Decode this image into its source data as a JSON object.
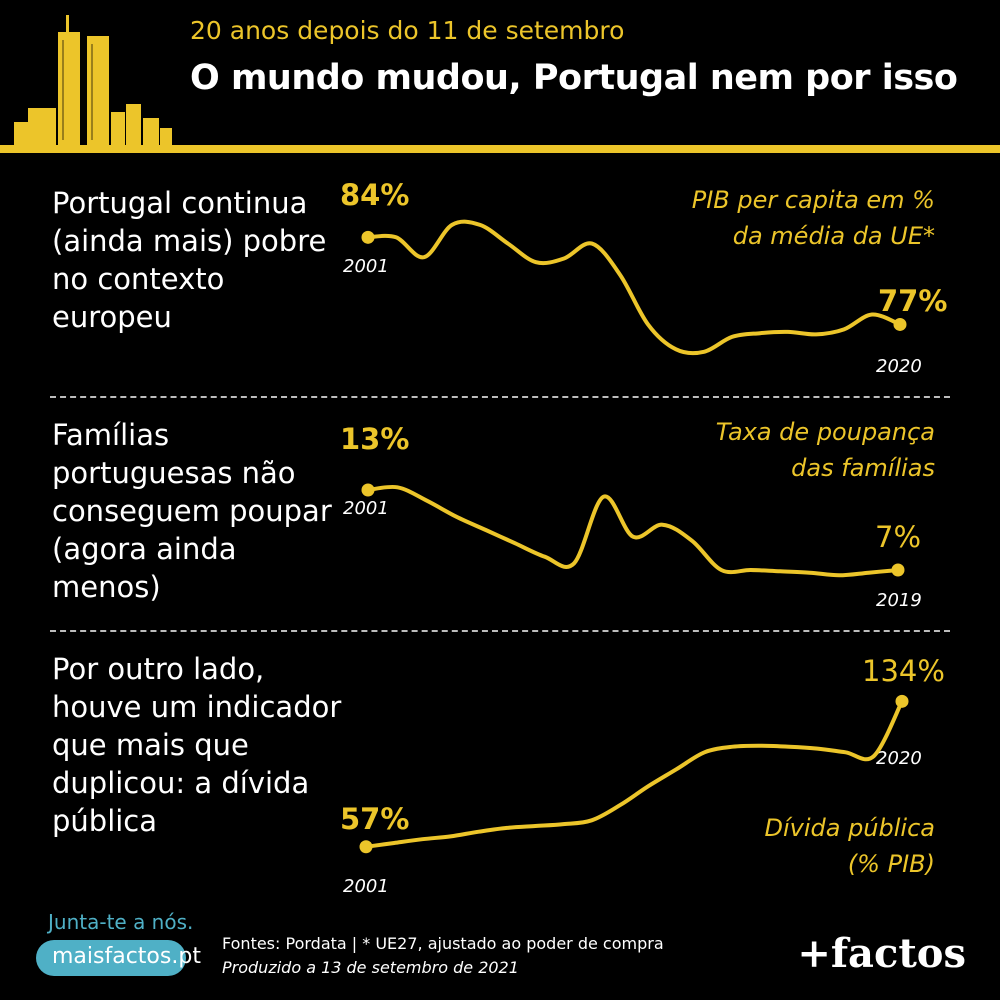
{
  "header": {
    "subtitle": "20 anos depois do 11 de setembro",
    "title": "O mundo mudou, Portugal nem por isso",
    "accent_color": "#ecc52a"
  },
  "panels": [
    {
      "description": "Portugal continua (ainda mais) pobre no contexto europeu"
    },
    {
      "description": "Famílias portuguesas não conseguem poupar (agora ainda menos)"
    },
    {
      "description": "Por outro lado, houve um indicador que mais que duplicou: a dívida pública"
    }
  ],
  "chart_data": [
    {
      "type": "line",
      "title": "PIB per capita em % da média da UE*",
      "title_lines": [
        "PIB per capita em %",
        "da média da UE*"
      ],
      "x": [
        2001,
        2002,
        2003,
        2004,
        2005,
        2006,
        2007,
        2008,
        2009,
        2010,
        2011,
        2012,
        2013,
        2014,
        2015,
        2016,
        2017,
        2018,
        2019,
        2020
      ],
      "series": [
        {
          "values": [
            84,
            84,
            82.4,
            85,
            85,
            83.5,
            82,
            82.3,
            83.5,
            81,
            77,
            75,
            74.8,
            76,
            76.3,
            76.4,
            76.2,
            76.6,
            77.8,
            77
          ]
        }
      ],
      "ylim": [
        73.5,
        87
      ],
      "start_label": "84%",
      "end_label": "77%",
      "start_year": "2001",
      "end_year": "2020",
      "line_color": "#ecc52a"
    },
    {
      "type": "line",
      "title": "Taxa de poupança das famílias",
      "title_lines": [
        "Taxa de poupança",
        "das famílias"
      ],
      "x": [
        2001,
        2002,
        2003,
        2004,
        2005,
        2006,
        2007,
        2008,
        2009,
        2010,
        2011,
        2012,
        2013,
        2014,
        2015,
        2016,
        2017,
        2018,
        2019
      ],
      "series": [
        {
          "values": [
            13,
            13.2,
            12.2,
            11,
            10,
            9,
            8,
            7.5,
            12.5,
            9.5,
            10.4,
            9.2,
            7,
            7,
            6.9,
            6.8,
            6.6,
            6.8,
            7
          ]
        }
      ],
      "ylim": [
        5.5,
        14.5
      ],
      "start_label": "13%",
      "end_label": "7%",
      "start_year": "2001",
      "end_year": "2019",
      "line_color": "#ecc52a"
    },
    {
      "type": "line",
      "title": "Dívida pública (% PIB)",
      "title_lines": [
        "Dívida pública",
        "(% PIB)"
      ],
      "x": [
        2001,
        2002,
        2003,
        2004,
        2005,
        2006,
        2007,
        2008,
        2009,
        2010,
        2011,
        2012,
        2013,
        2014,
        2015,
        2016,
        2017,
        2018,
        2019,
        2020
      ],
      "series": [
        {
          "values": [
            57,
            59,
            61,
            62.5,
            65,
            67,
            68,
            69,
            71,
            79,
            89,
            98,
            107,
            110,
            110.5,
            110,
            109,
            107,
            105,
            134
          ]
        }
      ],
      "ylim": [
        50,
        140
      ],
      "start_label": "57%",
      "end_label": "134%",
      "start_year": "2001",
      "end_year": "2020",
      "line_color": "#ecc52a"
    }
  ],
  "footer": {
    "cta": "Junta-te a nós.",
    "site": "maisfactos.pt",
    "sources": "Fontes: Pordata | * UE27, ajustado ao poder de compra",
    "produced": "Produzido a 13 de setembro de 2021",
    "logo": "+factos",
    "cta_color": "#4fb0c6"
  }
}
